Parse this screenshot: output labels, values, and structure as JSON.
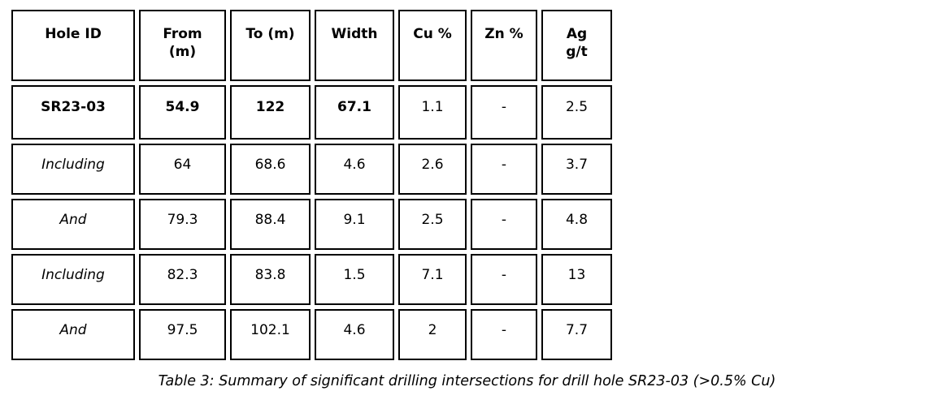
{
  "table": {
    "columns": [
      "Hole ID",
      "From\n(m)",
      "To (m)",
      "Width",
      "Cu %",
      "Zn %",
      "Ag\ng/t"
    ],
    "rows": [
      {
        "cells": [
          "SR23-03",
          "54.9",
          "122",
          "67.1",
          "1.1",
          "-",
          "2.5"
        ]
      },
      {
        "cells": [
          "Including",
          "64",
          "68.6",
          "4.6",
          "2.6",
          "-",
          "3.7"
        ]
      },
      {
        "cells": [
          "And",
          "79.3",
          "88.4",
          "9.1",
          "2.5",
          "-",
          "4.8"
        ]
      },
      {
        "cells": [
          "Including",
          "82.3",
          "83.8",
          "1.5",
          "7.1",
          "-",
          "13"
        ]
      },
      {
        "cells": [
          "And",
          "97.5",
          "102.1",
          "4.6",
          "2",
          "-",
          "7.7"
        ]
      }
    ]
  },
  "caption": "Table 3: Summary of significant drilling intersections for drill hole SR23-03 (>0.5% Cu)",
  "colors": {
    "border": "#000000",
    "text": "#000000",
    "background": "#ffffff"
  }
}
